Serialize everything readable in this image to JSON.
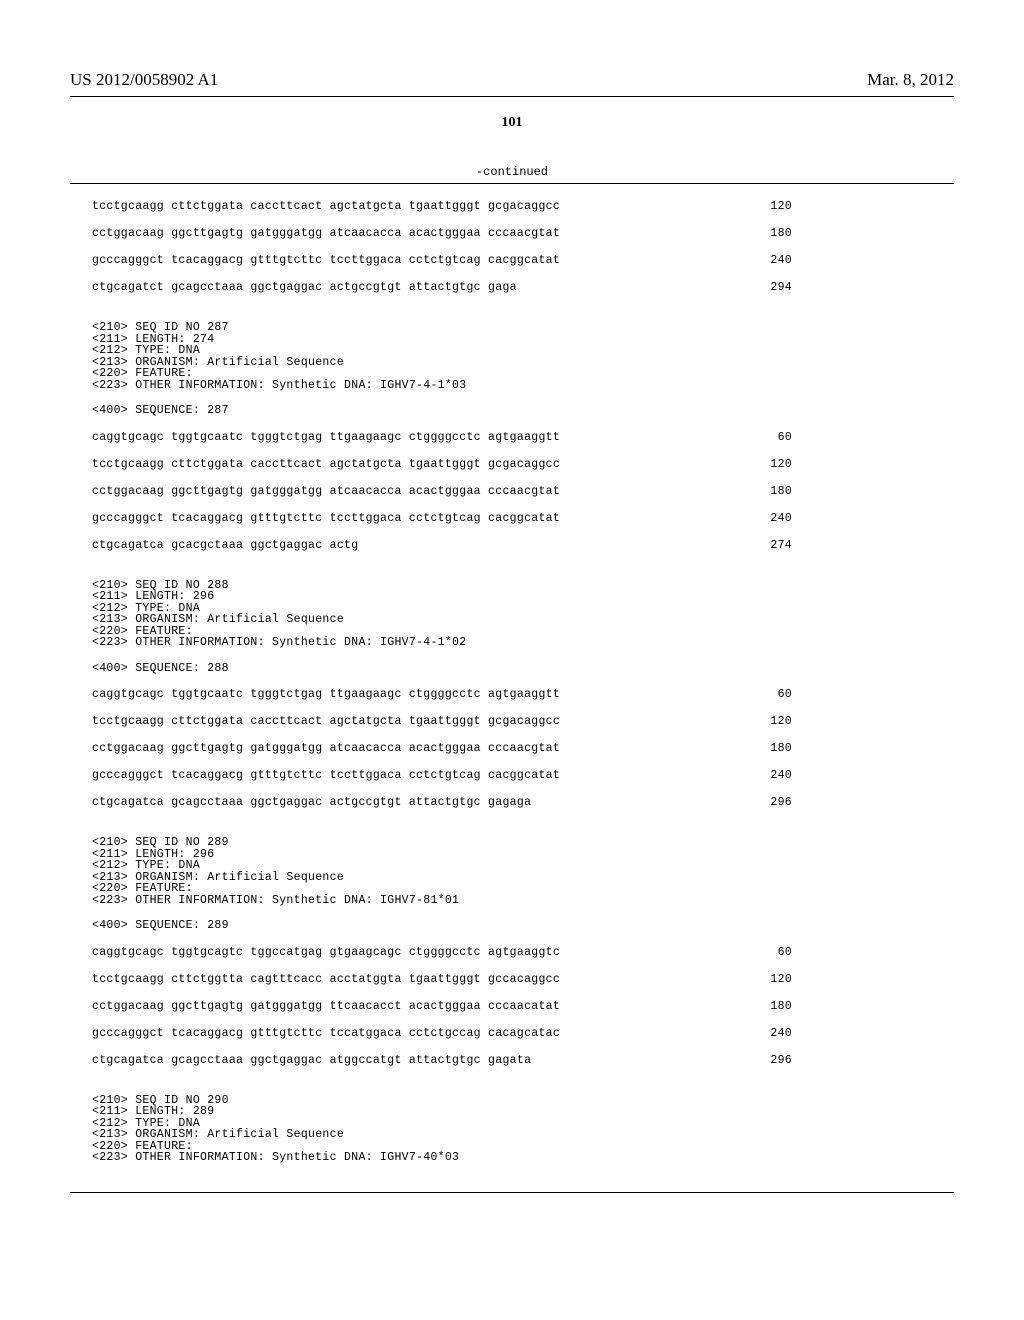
{
  "header": {
    "pub_number": "US 2012/0058902 A1",
    "pub_date": "Mar. 8, 2012"
  },
  "page_number": "101",
  "continued_label": "-continued",
  "blocks": [
    {
      "type": "seq",
      "lines": [
        {
          "text": "tcctgcaagg cttctggata caccttcact agctatgcta tgaattgggt gcgacaggcc",
          "pos": "120"
        },
        {
          "text": "cctggacaag ggcttgagtg gatgggatgg atcaacacca acactgggaa cccaacgtat",
          "pos": "180"
        },
        {
          "text": "gcccagggct tcacaggacg gtttgtcttc tccttggaca cctctgtcag cacggcatat",
          "pos": "240"
        },
        {
          "text": "ctgcagatct gcagcctaaa ggctgaggac actgccgtgt attactgtgc gaga",
          "pos": "294"
        }
      ]
    },
    {
      "type": "meta",
      "lines": [
        "<210> SEQ ID NO 287",
        "<211> LENGTH: 274",
        "<212> TYPE: DNA",
        "<213> ORGANISM: Artificial Sequence",
        "<220> FEATURE:",
        "<223> OTHER INFORMATION: Synthetic DNA: IGHV7-4-1*03"
      ]
    },
    {
      "type": "meta",
      "lines": [
        "<400> SEQUENCE: 287"
      ]
    },
    {
      "type": "seq",
      "lines": [
        {
          "text": "caggtgcagc tggtgcaatc tgggtctgag ttgaagaagc ctggggcctc agtgaaggtt",
          "pos": "60"
        },
        {
          "text": "tcctgcaagg cttctggata caccttcact agctatgcta tgaattgggt gcgacaggcc",
          "pos": "120"
        },
        {
          "text": "cctggacaag ggcttgagtg gatgggatgg atcaacacca acactgggaa cccaacgtat",
          "pos": "180"
        },
        {
          "text": "gcccagggct tcacaggacg gtttgtcttc tccttggaca cctctgtcag cacggcatat",
          "pos": "240"
        },
        {
          "text": "ctgcagatca gcacgctaaa ggctgaggac actg",
          "pos": "274"
        }
      ]
    },
    {
      "type": "meta",
      "lines": [
        "<210> SEQ ID NO 288",
        "<211> LENGTH: 296",
        "<212> TYPE: DNA",
        "<213> ORGANISM: Artificial Sequence",
        "<220> FEATURE:",
        "<223> OTHER INFORMATION: Synthetic DNA: IGHV7-4-1*02"
      ]
    },
    {
      "type": "meta",
      "lines": [
        "<400> SEQUENCE: 288"
      ]
    },
    {
      "type": "seq",
      "lines": [
        {
          "text": "caggtgcagc tggtgcaatc tgggtctgag ttgaagaagc ctggggcctc agtgaaggtt",
          "pos": "60"
        },
        {
          "text": "tcctgcaagg cttctggata caccttcact agctatgcta tgaattgggt gcgacaggcc",
          "pos": "120"
        },
        {
          "text": "cctggacaag ggcttgagtg gatgggatgg atcaacacca acactgggaa cccaacgtat",
          "pos": "180"
        },
        {
          "text": "gcccagggct tcacaggacg gtttgtcttc tccttggaca cctctgtcag cacggcatat",
          "pos": "240"
        },
        {
          "text": "ctgcagatca gcagcctaaa ggctgaggac actgccgtgt attactgtgc gagaga",
          "pos": "296"
        }
      ]
    },
    {
      "type": "meta",
      "lines": [
        "<210> SEQ ID NO 289",
        "<211> LENGTH: 296",
        "<212> TYPE: DNA",
        "<213> ORGANISM: Artificial Sequence",
        "<220> FEATURE:",
        "<223> OTHER INFORMATION: Synthetic DNA: IGHV7-81*01"
      ]
    },
    {
      "type": "meta",
      "lines": [
        "<400> SEQUENCE: 289"
      ]
    },
    {
      "type": "seq",
      "lines": [
        {
          "text": "caggtgcagc tggtgcagtc tggccatgag gtgaagcagc ctggggcctc agtgaaggtc",
          "pos": "60"
        },
        {
          "text": "tcctgcaagg cttctggtta cagtttcacc acctatggta tgaattgggt gccacaggcc",
          "pos": "120"
        },
        {
          "text": "cctggacaag ggcttgagtg gatgggatgg ttcaacacct acactgggaa cccaacatat",
          "pos": "180"
        },
        {
          "text": "gcccagggct tcacaggacg gtttgtcttc tccatggaca cctctgccag cacagcatac",
          "pos": "240"
        },
        {
          "text": "ctgcagatca gcagcctaaa ggctgaggac atggccatgt attactgtgc gagata",
          "pos": "296"
        }
      ]
    },
    {
      "type": "meta",
      "lines": [
        "<210> SEQ ID NO 290",
        "<211> LENGTH: 289",
        "<212> TYPE: DNA",
        "<213> ORGANISM: Artificial Sequence",
        "<220> FEATURE:",
        "<223> OTHER INFORMATION: Synthetic DNA: IGHV7-40*03"
      ]
    }
  ]
}
